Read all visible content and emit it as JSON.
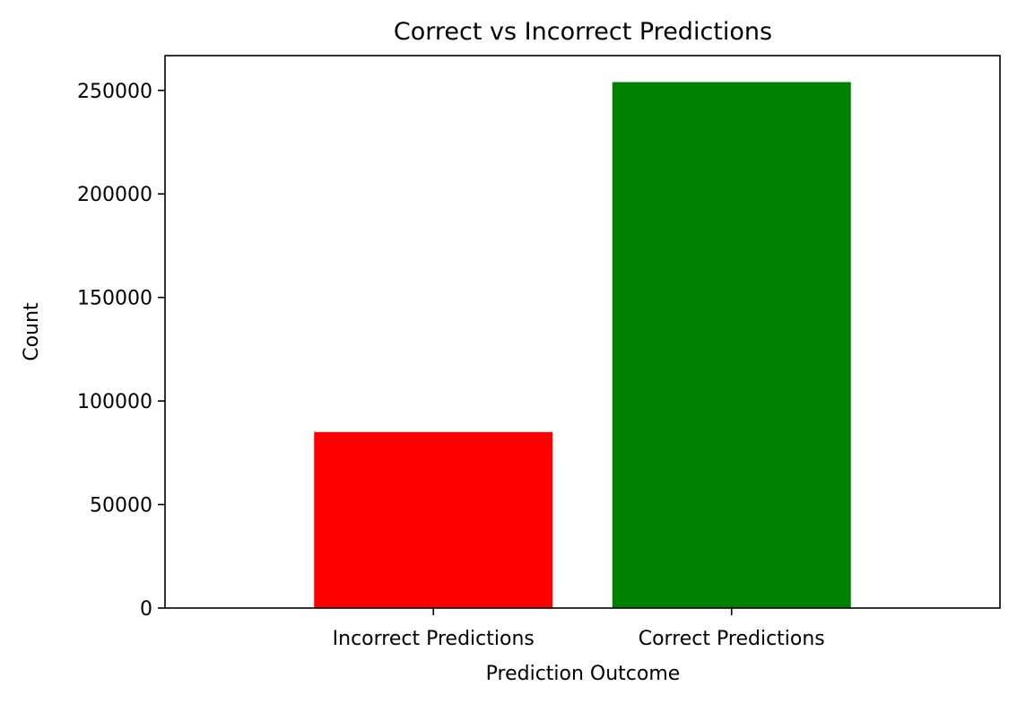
{
  "chart_data": {
    "type": "bar",
    "title": "Correct vs Incorrect Predictions",
    "xlabel": "Prediction Outcome",
    "ylabel": "Count",
    "categories": [
      "Incorrect Predictions",
      "Correct Predictions"
    ],
    "values": [
      85000,
      254000
    ],
    "colors": [
      "#ff0000",
      "#008000"
    ],
    "ylim": [
      0,
      266800
    ],
    "yticks": [
      0,
      50000,
      100000,
      150000,
      200000,
      250000
    ],
    "ytick_labels": [
      "0",
      "50000",
      "100000",
      "150000",
      "200000",
      "250000"
    ],
    "grid": false,
    "legend": "none"
  }
}
